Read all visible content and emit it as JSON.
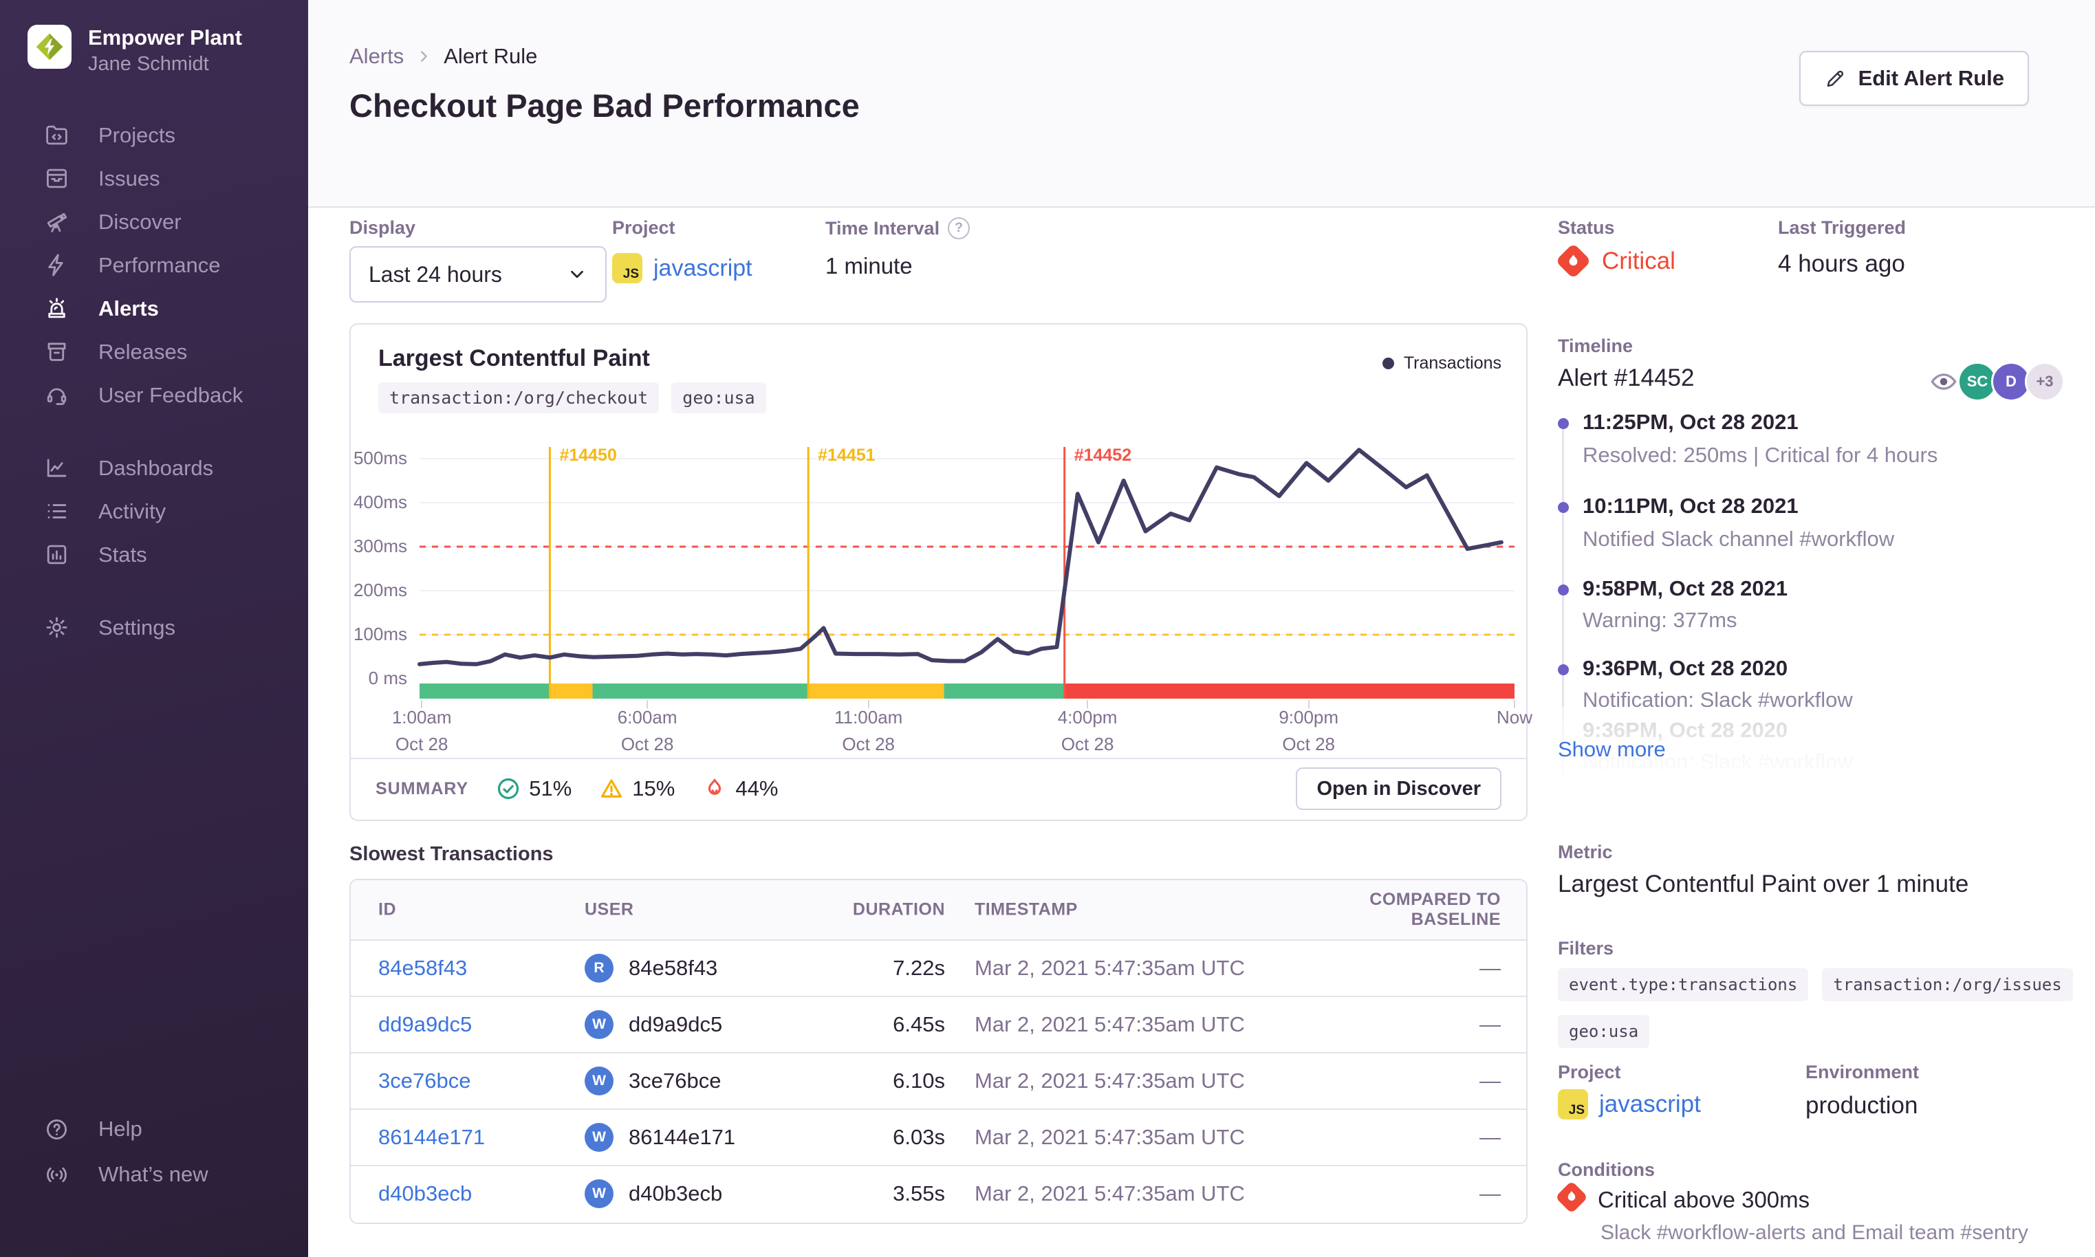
{
  "sidebar": {
    "org": {
      "name": "Empower Plant",
      "user": "Jane Schmidt"
    },
    "items": [
      {
        "label": "Projects"
      },
      {
        "label": "Issues"
      },
      {
        "label": "Discover"
      },
      {
        "label": "Performance"
      },
      {
        "label": "Alerts"
      },
      {
        "label": "Releases"
      },
      {
        "label": "User Feedback"
      },
      {
        "label": "Dashboards"
      },
      {
        "label": "Activity"
      },
      {
        "label": "Stats"
      },
      {
        "label": "Settings"
      },
      {
        "label": "Help"
      },
      {
        "label": "What’s new"
      }
    ]
  },
  "header": {
    "breadcrumb": {
      "parent": "Alerts",
      "current": "Alert Rule"
    },
    "title": "Checkout Page Bad Performance",
    "edit_button": "Edit Alert Rule"
  },
  "filters_bar": {
    "display": {
      "label": "Display",
      "value": "Last 24 hours"
    },
    "project": {
      "label": "Project",
      "value": "javascript",
      "badge": "JS"
    },
    "interval": {
      "label": "Time Interval",
      "value": "1 minute"
    }
  },
  "chart_data": {
    "type": "line",
    "title": "Largest Contentful Paint",
    "tags": [
      "transaction:/org/checkout",
      "geo:usa"
    ],
    "legend": {
      "label": "Transactions",
      "position": "top-right"
    },
    "unit": "ms",
    "ylim": [
      0,
      540
    ],
    "grid": true,
    "y_ticks": [
      {
        "v": 0,
        "label": "0 ms"
      },
      {
        "v": 100,
        "label": "100ms"
      },
      {
        "v": 200,
        "label": "200ms"
      },
      {
        "v": 300,
        "label": "300ms"
      },
      {
        "v": 400,
        "label": "400ms"
      },
      {
        "v": 500,
        "label": "500ms"
      }
    ],
    "x_ticks": [
      {
        "f": 0.002,
        "label": "1:00am",
        "sub": "Oct 28"
      },
      {
        "f": 0.208,
        "label": "6:00am",
        "sub": "Oct 28"
      },
      {
        "f": 0.41,
        "label": "11:00am",
        "sub": "Oct 28"
      },
      {
        "f": 0.61,
        "label": "4:00pm",
        "sub": "Oct 28"
      },
      {
        "f": 0.812,
        "label": "9:00pm",
        "sub": "Oct 28"
      },
      {
        "f": 1.0,
        "label": "Now",
        "sub": ""
      }
    ],
    "thresholds": [
      {
        "name": "critical",
        "v": 300,
        "color": "#F55549"
      },
      {
        "name": "warning",
        "v": 100,
        "color": "#FFC227"
      }
    ],
    "markers": [
      {
        "f": 0.119,
        "label": "#14450",
        "color": "#F6B912"
      },
      {
        "f": 0.355,
        "label": "#14451",
        "color": "#F6B912"
      },
      {
        "f": 0.589,
        "label": "#14452",
        "color": "#F55549"
      }
    ],
    "status_segments": [
      {
        "from": 0.0,
        "to": 0.119,
        "color": "#4FBF85"
      },
      {
        "from": 0.119,
        "to": 0.158,
        "color": "#FFC227"
      },
      {
        "from": 0.158,
        "to": 0.355,
        "color": "#4FBF85"
      },
      {
        "from": 0.355,
        "to": 0.479,
        "color": "#FFC227"
      },
      {
        "from": 0.479,
        "to": 0.589,
        "color": "#4FBF85"
      },
      {
        "from": 0.589,
        "to": 1.0,
        "color": "#F2453F"
      }
    ],
    "series": [
      {
        "name": "Transactions",
        "color": "#423F66",
        "points": [
          [
            0.0,
            33
          ],
          [
            0.012,
            36
          ],
          [
            0.025,
            38
          ],
          [
            0.038,
            34
          ],
          [
            0.052,
            33
          ],
          [
            0.065,
            40
          ],
          [
            0.078,
            55
          ],
          [
            0.092,
            48
          ],
          [
            0.105,
            53
          ],
          [
            0.119,
            48
          ],
          [
            0.132,
            55
          ],
          [
            0.146,
            51
          ],
          [
            0.159,
            49
          ],
          [
            0.172,
            50
          ],
          [
            0.186,
            51
          ],
          [
            0.199,
            52
          ],
          [
            0.212,
            55
          ],
          [
            0.226,
            57
          ],
          [
            0.24,
            55
          ],
          [
            0.253,
            56
          ],
          [
            0.266,
            55
          ],
          [
            0.28,
            53
          ],
          [
            0.293,
            56
          ],
          [
            0.306,
            58
          ],
          [
            0.32,
            60
          ],
          [
            0.334,
            63
          ],
          [
            0.348,
            68
          ],
          [
            0.362,
            98
          ],
          [
            0.369,
            115
          ],
          [
            0.38,
            57
          ],
          [
            0.398,
            56
          ],
          [
            0.418,
            56
          ],
          [
            0.438,
            55
          ],
          [
            0.455,
            56
          ],
          [
            0.468,
            42
          ],
          [
            0.483,
            40
          ],
          [
            0.498,
            40
          ],
          [
            0.513,
            60
          ],
          [
            0.528,
            90
          ],
          [
            0.543,
            62
          ],
          [
            0.556,
            57
          ],
          [
            0.568,
            68
          ],
          [
            0.582,
            72
          ],
          [
            0.601,
            420
          ],
          [
            0.62,
            310
          ],
          [
            0.643,
            450
          ],
          [
            0.663,
            335
          ],
          [
            0.686,
            375
          ],
          [
            0.703,
            360
          ],
          [
            0.728,
            480
          ],
          [
            0.748,
            465
          ],
          [
            0.762,
            458
          ],
          [
            0.785,
            415
          ],
          [
            0.81,
            490
          ],
          [
            0.83,
            450
          ],
          [
            0.858,
            520
          ],
          [
            0.881,
            475
          ],
          [
            0.901,
            435
          ],
          [
            0.92,
            462
          ],
          [
            0.957,
            295
          ],
          [
            0.988,
            310
          ]
        ]
      }
    ]
  },
  "summary": {
    "label": "SUMMARY",
    "items": [
      {
        "icon": "check-circle",
        "pct": "51%"
      },
      {
        "icon": "warning-triangle",
        "pct": "15%"
      },
      {
        "icon": "fire",
        "pct": "44%"
      }
    ],
    "button": "Open in Discover"
  },
  "table": {
    "label": "Slowest Transactions",
    "headers": [
      "ID",
      "USER",
      "DURATION",
      "TIMESTAMP",
      "COMPARED TO BASELINE"
    ],
    "rows": [
      {
        "id": "84e58f43",
        "avatar": "R",
        "user": "84e58f43",
        "duration": "7.22s",
        "timestamp": "Mar 2, 2021 5:47:35am UTC",
        "baseline": "—"
      },
      {
        "id": "dd9a9dc5",
        "avatar": "W",
        "user": "dd9a9dc5",
        "duration": "6.45s",
        "timestamp": "Mar 2, 2021 5:47:35am UTC",
        "baseline": "—"
      },
      {
        "id": "3ce76bce",
        "avatar": "W",
        "user": "3ce76bce",
        "duration": "6.10s",
        "timestamp": "Mar 2, 2021 5:47:35am UTC",
        "baseline": "—"
      },
      {
        "id": "86144e171",
        "avatar": "W",
        "user": "86144e171",
        "duration": "6.03s",
        "timestamp": "Mar 2, 2021 5:47:35am UTC",
        "baseline": "—"
      },
      {
        "id": "d40b3ecb",
        "avatar": "W",
        "user": "d40b3ecb",
        "duration": "3.55s",
        "timestamp": "Mar 2, 2021 5:47:35am UTC",
        "baseline": "—"
      }
    ]
  },
  "right": {
    "status": {
      "label": "Status",
      "value": "Critical"
    },
    "last_triggered": {
      "label": "Last Triggered",
      "value": "4 hours ago"
    },
    "timeline": {
      "label": "Timeline",
      "alert_link": "Alert #14452",
      "avatars": [
        {
          "initials": "SC",
          "color": "#2BA185"
        },
        {
          "initials": "D",
          "color": "#6C5FC7"
        },
        {
          "initials": "+3",
          "color": "#E7E1EC",
          "text_color": "#80708F"
        }
      ],
      "entries": [
        {
          "time": "11:25PM, Oct 28 2021",
          "detail": "Resolved: 250ms | Critical for 4 hours"
        },
        {
          "time": "10:11PM, Oct 28 2021",
          "detail": "Notified Slack channel #workflow"
        },
        {
          "time": "9:58PM, Oct 28 2021",
          "detail": "Warning: 377ms"
        },
        {
          "time": "9:36PM, Oct 28 2020",
          "detail": "Notification: Slack #workflow"
        },
        {
          "time": "9:36PM, Oct 28 2020",
          "detail": "Notification: Slack #workflow"
        }
      ],
      "show_more": "Show more"
    },
    "metric": {
      "label": "Metric",
      "value": "Largest Contentful Paint over 1 minute"
    },
    "filters": {
      "label": "Filters",
      "tags": [
        "event.type:transactions",
        "transaction:/org/issues",
        "geo:usa"
      ]
    },
    "project": {
      "label": "Project",
      "value": "javascript",
      "badge": "JS"
    },
    "environment": {
      "label": "Environment",
      "value": "production"
    },
    "conditions": {
      "label": "Conditions",
      "title": "Critical above 300ms",
      "detail": "Slack #workflow-alerts and Email team #sentry"
    }
  },
  "colors": {
    "accent_purple": "#6C5FC7",
    "link_blue": "#3C74DD",
    "critical_red": "#EF4836",
    "warning_yellow": "#FFC227",
    "ok_green": "#4FBF85",
    "series_navy": "#423F66"
  }
}
